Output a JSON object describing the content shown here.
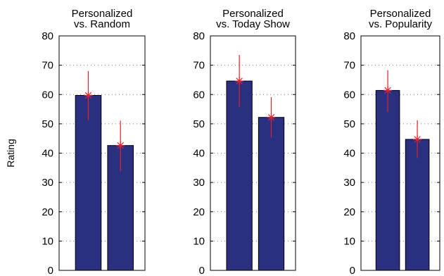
{
  "chart_data": [
    {
      "type": "bar",
      "title": [
        "Personalized",
        "vs. Random"
      ],
      "ylabel": "Rating",
      "ylim": [
        0,
        80
      ],
      "yticks": [
        0,
        10,
        20,
        30,
        40,
        50,
        60,
        70,
        80
      ],
      "grid": "y-dotted",
      "values": [
        59.7,
        42.6
      ],
      "error_low": [
        51.3,
        33.9
      ],
      "error_high": [
        68.0,
        51.1
      ]
    },
    {
      "type": "bar",
      "title": [
        "Personalized",
        "vs. Today Show"
      ],
      "ylabel": "",
      "ylim": [
        0,
        80
      ],
      "yticks": [
        0,
        10,
        20,
        30,
        40,
        50,
        60,
        70,
        80
      ],
      "grid": "y-dotted",
      "values": [
        64.6,
        52.2
      ],
      "error_low": [
        55.8,
        45.3
      ],
      "error_high": [
        73.5,
        59.1
      ]
    },
    {
      "type": "bar",
      "title": [
        "Personalized",
        "vs. Popularity"
      ],
      "ylabel": "",
      "ylim": [
        0,
        80
      ],
      "yticks": [
        0,
        10,
        20,
        30,
        40,
        50,
        60,
        70,
        80
      ],
      "grid": "y-dotted",
      "values": [
        61.4,
        44.7
      ],
      "error_low": [
        54.0,
        38.3
      ],
      "error_high": [
        68.3,
        51.2
      ]
    }
  ],
  "colors": {
    "bar": "#2b2f7f",
    "bar_edge": "#000000",
    "error": "#e8202a",
    "grid": "#7f7f7f"
  }
}
